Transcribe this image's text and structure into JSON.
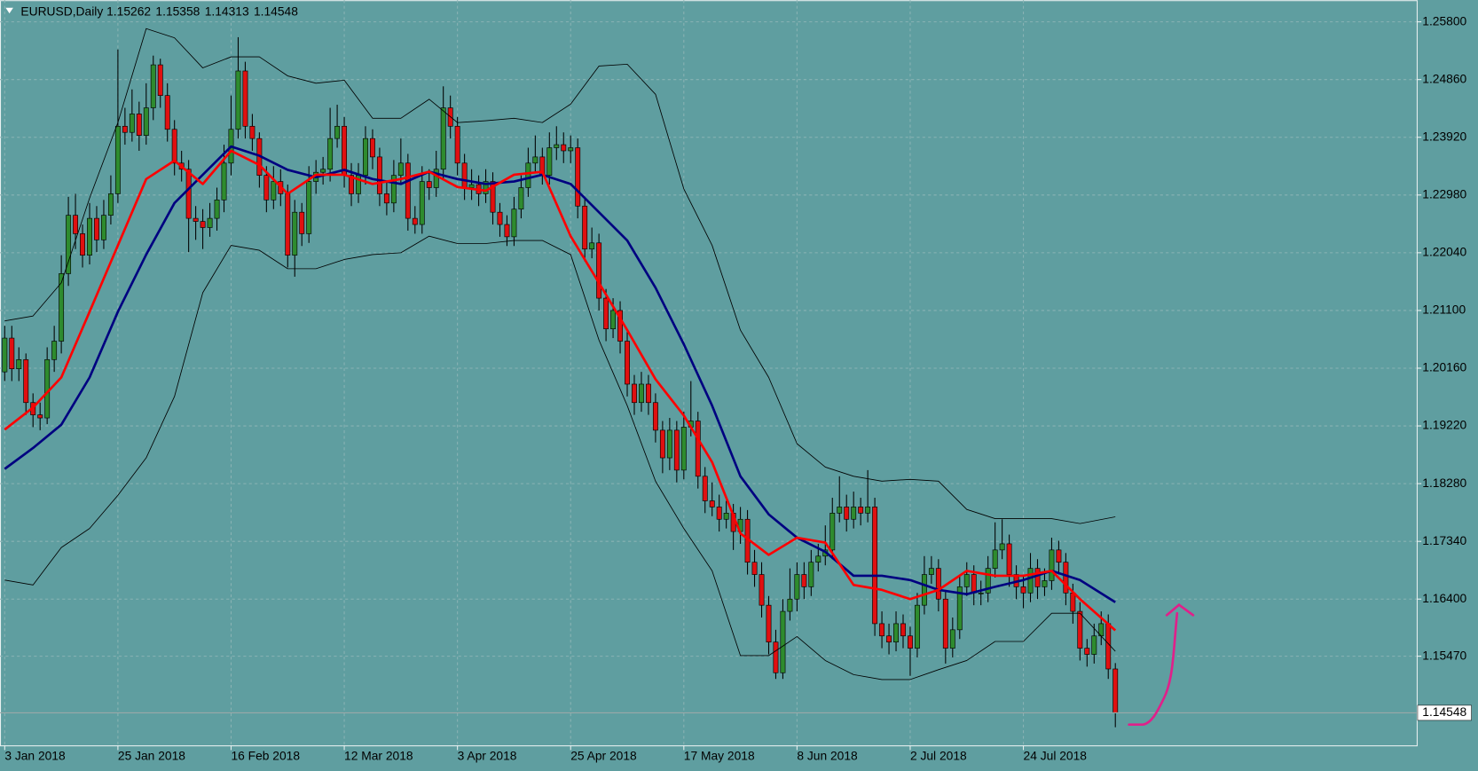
{
  "chart_data": {
    "type": "candlestick",
    "title": "EURUSD,Daily",
    "up_color": "#2e8b2e",
    "down_color": "#e01010",
    "background": "#5f9ea0",
    "grid": true,
    "xlim": [
      -0.667,
      199.6
    ],
    "ylim": [
      1.14018,
      1.26153
    ],
    "xticks": [
      {
        "value": 0,
        "label": "3 Jan 2018"
      },
      {
        "value": 16,
        "label": "25 Jan 2018"
      },
      {
        "value": 32,
        "label": "16 Feb 2018"
      },
      {
        "value": 48,
        "label": "12 Mar 2018"
      },
      {
        "value": 64,
        "label": "3 Apr 2018"
      },
      {
        "value": 80,
        "label": "25 Apr 2018"
      },
      {
        "value": 96,
        "label": "17 May 2018"
      },
      {
        "value": 112,
        "label": "8 Jun 2018"
      },
      {
        "value": 128,
        "label": "2 Jul 2018"
      },
      {
        "value": 144,
        "label": "24 Jul 2018"
      }
    ],
    "yticks": [
      {
        "value": 1.258,
        "label": "1.25800"
      },
      {
        "value": 1.2486,
        "label": "1.24860"
      },
      {
        "value": 1.2392,
        "label": "1.23920"
      },
      {
        "value": 1.2298,
        "label": "1.22980"
      },
      {
        "value": 1.2204,
        "label": "1.22040"
      },
      {
        "value": 1.211,
        "label": "1.21100"
      },
      {
        "value": 1.2016,
        "label": "1.20160"
      },
      {
        "value": 1.1922,
        "label": "1.19220"
      },
      {
        "value": 1.1828,
        "label": "1.18280"
      },
      {
        "value": 1.1734,
        "label": "1.17340"
      },
      {
        "value": 1.164,
        "label": "1.16400"
      },
      {
        "value": 1.1547,
        "label": "1.15470"
      }
    ],
    "candles": [
      [
        1.201,
        1.2085,
        1.1995,
        1.2065
      ],
      [
        1.2065,
        1.2085,
        1.1995,
        1.2015
      ],
      [
        1.2015,
        1.205,
        1.1995,
        1.203
      ],
      [
        1.203,
        1.204,
        1.194,
        1.196
      ],
      [
        1.196,
        1.1975,
        1.192,
        1.194
      ],
      [
        1.194,
        1.196,
        1.1915,
        1.1935
      ],
      [
        1.1935,
        1.205,
        1.1925,
        1.203
      ],
      [
        1.203,
        1.2085,
        1.201,
        1.206
      ],
      [
        1.206,
        1.22,
        1.204,
        1.217
      ],
      [
        1.217,
        1.2295,
        1.215,
        1.2265
      ],
      [
        1.2265,
        1.23,
        1.221,
        1.2235
      ],
      [
        1.2235,
        1.225,
        1.218,
        1.22
      ],
      [
        1.22,
        1.2285,
        1.2185,
        1.226
      ],
      [
        1.226,
        1.228,
        1.2205,
        1.2225
      ],
      [
        1.2225,
        1.229,
        1.221,
        1.2265
      ],
      [
        1.2265,
        1.233,
        1.225,
        1.23
      ],
      [
        1.23,
        1.2535,
        1.2285,
        1.241
      ],
      [
        1.241,
        1.244,
        1.238,
        1.24
      ],
      [
        1.24,
        1.247,
        1.2385,
        1.243
      ],
      [
        1.243,
        1.245,
        1.237,
        1.2395
      ],
      [
        1.2395,
        1.248,
        1.238,
        1.244
      ],
      [
        1.244,
        1.2525,
        1.242,
        1.251
      ],
      [
        1.251,
        1.252,
        1.244,
        1.246
      ],
      [
        1.246,
        1.248,
        1.2385,
        1.2405
      ],
      [
        1.2405,
        1.242,
        1.233,
        1.235
      ],
      [
        1.235,
        1.237,
        1.232,
        1.234
      ],
      [
        1.234,
        1.2355,
        1.2205,
        1.226
      ],
      [
        1.226,
        1.228,
        1.2225,
        1.2255
      ],
      [
        1.2255,
        1.2275,
        1.221,
        1.2245
      ],
      [
        1.2245,
        1.2285,
        1.223,
        1.226
      ],
      [
        1.226,
        1.231,
        1.224,
        1.229
      ],
      [
        1.229,
        1.238,
        1.227,
        1.235
      ],
      [
        1.235,
        1.246,
        1.233,
        1.2405
      ],
      [
        1.2405,
        1.2555,
        1.239,
        1.25
      ],
      [
        1.25,
        1.2515,
        1.239,
        1.241
      ],
      [
        1.241,
        1.243,
        1.237,
        1.239
      ],
      [
        1.239,
        1.24,
        1.231,
        1.233
      ],
      [
        1.233,
        1.2345,
        1.227,
        1.229
      ],
      [
        1.229,
        1.2345,
        1.2275,
        1.232
      ],
      [
        1.232,
        1.234,
        1.228,
        1.23
      ],
      [
        1.23,
        1.2315,
        1.218,
        1.22
      ],
      [
        1.22,
        1.229,
        1.2165,
        1.227
      ],
      [
        1.227,
        1.2285,
        1.2215,
        1.2235
      ],
      [
        1.2235,
        1.2345,
        1.222,
        1.232
      ],
      [
        1.232,
        1.2355,
        1.23,
        1.2335
      ],
      [
        1.2335,
        1.236,
        1.2315,
        1.234
      ],
      [
        1.234,
        1.244,
        1.232,
        1.239
      ],
      [
        1.239,
        1.2445,
        1.2375,
        1.241
      ],
      [
        1.241,
        1.2425,
        1.231,
        1.233
      ],
      [
        1.233,
        1.235,
        1.228,
        1.23
      ],
      [
        1.23,
        1.235,
        1.2285,
        1.233
      ],
      [
        1.233,
        1.241,
        1.2315,
        1.239
      ],
      [
        1.239,
        1.2405,
        1.234,
        1.236
      ],
      [
        1.236,
        1.2375,
        1.228,
        1.23
      ],
      [
        1.23,
        1.232,
        1.2265,
        1.2285
      ],
      [
        1.2285,
        1.2355,
        1.227,
        1.233
      ],
      [
        1.233,
        1.239,
        1.2315,
        1.235
      ],
      [
        1.235,
        1.2365,
        1.224,
        1.226
      ],
      [
        1.226,
        1.228,
        1.2235,
        1.225
      ],
      [
        1.225,
        1.2345,
        1.2235,
        1.232
      ],
      [
        1.232,
        1.234,
        1.229,
        1.231
      ],
      [
        1.231,
        1.237,
        1.2295,
        1.234
      ],
      [
        1.234,
        1.2475,
        1.2325,
        1.244
      ],
      [
        1.244,
        1.246,
        1.239,
        1.241
      ],
      [
        1.241,
        1.2425,
        1.233,
        1.235
      ],
      [
        1.235,
        1.2365,
        1.229,
        1.231
      ],
      [
        1.231,
        1.234,
        1.229,
        1.2315
      ],
      [
        1.2315,
        1.233,
        1.228,
        1.23
      ],
      [
        1.23,
        1.234,
        1.2285,
        1.232
      ],
      [
        1.232,
        1.2335,
        1.225,
        1.227
      ],
      [
        1.227,
        1.2285,
        1.223,
        1.225
      ],
      [
        1.225,
        1.2265,
        1.2215,
        1.223
      ],
      [
        1.223,
        1.2295,
        1.2215,
        1.2275
      ],
      [
        1.2275,
        1.233,
        1.226,
        1.231
      ],
      [
        1.231,
        1.2375,
        1.2295,
        1.235
      ],
      [
        1.235,
        1.2395,
        1.2335,
        1.236
      ],
      [
        1.236,
        1.2375,
        1.2315,
        1.233
      ],
      [
        1.233,
        1.24,
        1.2315,
        1.2375
      ],
      [
        1.2375,
        1.241,
        1.2355,
        1.238
      ],
      [
        1.238,
        1.24,
        1.235,
        1.237
      ],
      [
        1.237,
        1.2395,
        1.235,
        1.2375
      ],
      [
        1.2375,
        1.239,
        1.226,
        1.228
      ],
      [
        1.228,
        1.2295,
        1.219,
        1.221
      ],
      [
        1.221,
        1.2245,
        1.2195,
        1.222
      ],
      [
        1.222,
        1.2235,
        1.211,
        1.213
      ],
      [
        1.213,
        1.2145,
        1.206,
        1.208
      ],
      [
        1.208,
        1.213,
        1.2065,
        1.211
      ],
      [
        1.211,
        1.2125,
        1.204,
        1.206
      ],
      [
        1.206,
        1.2075,
        1.197,
        1.199
      ],
      [
        1.199,
        1.2005,
        1.194,
        1.196
      ],
      [
        1.196,
        1.201,
        1.1945,
        1.199
      ],
      [
        1.199,
        1.2005,
        1.194,
        1.196
      ],
      [
        1.196,
        1.1975,
        1.1895,
        1.1915
      ],
      [
        1.1915,
        1.193,
        1.1845,
        1.187
      ],
      [
        1.187,
        1.1935,
        1.185,
        1.1915
      ],
      [
        1.1915,
        1.193,
        1.183,
        1.185
      ],
      [
        1.185,
        1.1945,
        1.1835,
        1.192
      ],
      [
        1.192,
        1.1995,
        1.1905,
        1.193
      ],
      [
        1.193,
        1.1945,
        1.182,
        1.184
      ],
      [
        1.184,
        1.1855,
        1.178,
        1.18
      ],
      [
        1.18,
        1.183,
        1.1775,
        1.179
      ],
      [
        1.179,
        1.181,
        1.175,
        1.177
      ],
      [
        1.177,
        1.18,
        1.1755,
        1.178
      ],
      [
        1.178,
        1.1795,
        1.172,
        1.175
      ],
      [
        1.175,
        1.179,
        1.173,
        1.177
      ],
      [
        1.177,
        1.1785,
        1.168,
        1.17
      ],
      [
        1.17,
        1.172,
        1.166,
        1.168
      ],
      [
        1.168,
        1.17,
        1.161,
        1.163
      ],
      [
        1.163,
        1.1645,
        1.155,
        1.157
      ],
      [
        1.157,
        1.159,
        1.151,
        1.152
      ],
      [
        1.152,
        1.164,
        1.151,
        1.162
      ],
      [
        1.162,
        1.169,
        1.1605,
        1.164
      ],
      [
        1.164,
        1.17,
        1.162,
        1.168
      ],
      [
        1.168,
        1.17,
        1.164,
        1.166
      ],
      [
        1.166,
        1.172,
        1.1645,
        1.17
      ],
      [
        1.17,
        1.173,
        1.1685,
        1.171
      ],
      [
        1.171,
        1.176,
        1.1695,
        1.172
      ],
      [
        1.172,
        1.1805,
        1.1705,
        1.178
      ],
      [
        1.178,
        1.184,
        1.1765,
        1.179
      ],
      [
        1.179,
        1.181,
        1.175,
        1.177
      ],
      [
        1.177,
        1.1815,
        1.1755,
        1.179
      ],
      [
        1.179,
        1.1805,
        1.176,
        1.178
      ],
      [
        1.178,
        1.185,
        1.1765,
        1.179
      ],
      [
        1.179,
        1.1805,
        1.158,
        1.16
      ],
      [
        1.16,
        1.162,
        1.156,
        1.158
      ],
      [
        1.158,
        1.16,
        1.155,
        1.157
      ],
      [
        1.157,
        1.162,
        1.1555,
        1.16
      ],
      [
        1.16,
        1.1615,
        1.156,
        1.158
      ],
      [
        1.158,
        1.1595,
        1.1515,
        1.156
      ],
      [
        1.156,
        1.165,
        1.1545,
        1.163
      ],
      [
        1.163,
        1.171,
        1.1615,
        1.168
      ],
      [
        1.168,
        1.171,
        1.1665,
        1.169
      ],
      [
        1.169,
        1.1705,
        1.162,
        1.164
      ],
      [
        1.164,
        1.1655,
        1.1535,
        1.156
      ],
      [
        1.156,
        1.161,
        1.1545,
        1.159
      ],
      [
        1.159,
        1.168,
        1.1575,
        1.166
      ],
      [
        1.166,
        1.17,
        1.1645,
        1.168
      ],
      [
        1.168,
        1.1695,
        1.163,
        1.165
      ],
      [
        1.165,
        1.167,
        1.163,
        1.165
      ],
      [
        1.165,
        1.171,
        1.1635,
        1.169
      ],
      [
        1.169,
        1.1765,
        1.1675,
        1.172
      ],
      [
        1.172,
        1.177,
        1.1705,
        1.173
      ],
      [
        1.173,
        1.1745,
        1.166,
        1.168
      ],
      [
        1.168,
        1.1695,
        1.164,
        1.166
      ],
      [
        1.166,
        1.168,
        1.1625,
        1.165
      ],
      [
        1.165,
        1.1715,
        1.1635,
        1.169
      ],
      [
        1.169,
        1.1705,
        1.164,
        1.166
      ],
      [
        1.166,
        1.169,
        1.1645,
        1.167
      ],
      [
        1.167,
        1.174,
        1.1655,
        1.172
      ],
      [
        1.172,
        1.1735,
        1.168,
        1.17
      ],
      [
        1.17,
        1.1715,
        1.163,
        1.165
      ],
      [
        1.165,
        1.1665,
        1.16,
        1.162
      ],
      [
        1.162,
        1.1635,
        1.154,
        1.156
      ],
      [
        1.156,
        1.1575,
        1.153,
        1.155
      ],
      [
        1.155,
        1.16,
        1.1535,
        1.158
      ],
      [
        1.158,
        1.162,
        1.1565,
        1.16
      ],
      [
        1.16,
        1.1615,
        1.151,
        1.15262
      ],
      [
        1.15262,
        1.15358,
        1.14313,
        1.14548
      ]
    ],
    "lines": [
      {
        "color": "#000000",
        "width": 0.8,
        "x": [
          0,
          4,
          8,
          12,
          16,
          20,
          24,
          28,
          32,
          36,
          40,
          44,
          48,
          52,
          56,
          60,
          64,
          68,
          72,
          76,
          80,
          84,
          88,
          92,
          96,
          100,
          104,
          108,
          112,
          116,
          120,
          124,
          128,
          132,
          136,
          140,
          144,
          148,
          152,
          157
        ],
        "values": [
          1.2093,
          1.2101,
          1.2155,
          1.2293,
          1.2416,
          1.2569,
          1.2554,
          1.2505,
          1.2523,
          1.2523,
          1.2492,
          1.248,
          1.2485,
          1.2423,
          1.2423,
          1.2454,
          1.2416,
          1.2419,
          1.2423,
          1.2416,
          1.2446,
          1.2508,
          1.2511,
          1.2462,
          1.2308,
          1.2216,
          1.2078,
          1.2001,
          1.1893,
          1.1855,
          1.184,
          1.1832,
          1.1835,
          1.1832,
          1.1786,
          1.1771,
          1.1771,
          1.1771,
          1.1763,
          1.1774
        ]
      },
      {
        "color": "#000000",
        "width": 0.8,
        "x": [
          0,
          4,
          8,
          12,
          16,
          20,
          24,
          28,
          32,
          36,
          40,
          44,
          48,
          52,
          56,
          60,
          64,
          68,
          72,
          76,
          80,
          84,
          88,
          92,
          96,
          100,
          104,
          108,
          112,
          116,
          120,
          124,
          128,
          132,
          136,
          140,
          144,
          148,
          152,
          157
        ],
        "values": [
          1.1671,
          1.1663,
          1.1724,
          1.1755,
          1.1809,
          1.187,
          1.197,
          1.2139,
          1.2216,
          1.2208,
          1.2178,
          1.2178,
          1.2193,
          1.2201,
          1.2204,
          1.2231,
          1.2219,
          1.2219,
          1.2224,
          1.2224,
          1.2201,
          1.2062,
          1.1955,
          1.1832,
          1.1755,
          1.1686,
          1.1548,
          1.1548,
          1.1579,
          1.154,
          1.1517,
          1.1509,
          1.1509,
          1.1525,
          1.154,
          1.1571,
          1.1571,
          1.1617,
          1.1617,
          1.1555
        ]
      },
      {
        "color": "#000080",
        "width": 2.5,
        "x": [
          0,
          4,
          8,
          12,
          16,
          20,
          24,
          28,
          32,
          36,
          40,
          44,
          48,
          52,
          56,
          60,
          64,
          68,
          72,
          76,
          80,
          84,
          88,
          92,
          96,
          100,
          104,
          108,
          112,
          116,
          120,
          124,
          128,
          132,
          136,
          140,
          144,
          148,
          152,
          157
        ],
        "values": [
          1.1852,
          1.1886,
          1.1924,
          1.2001,
          1.2108,
          1.2201,
          1.2285,
          1.2331,
          1.2377,
          1.2362,
          1.2339,
          1.2327,
          1.2339,
          1.2324,
          1.2316,
          1.2336,
          1.2324,
          1.2316,
          1.232,
          1.2331,
          1.2316,
          1.227,
          1.2224,
          1.2147,
          1.2055,
          1.1955,
          1.184,
          1.1778,
          1.174,
          1.1717,
          1.1678,
          1.1678,
          1.1671,
          1.1655,
          1.1648,
          1.166,
          1.1671,
          1.1686,
          1.1671,
          1.1635
        ]
      },
      {
        "color": "#ff0000",
        "width": 2.5,
        "x": [
          0,
          4,
          8,
          12,
          16,
          20,
          24,
          28,
          32,
          36,
          40,
          44,
          48,
          52,
          56,
          60,
          64,
          68,
          72,
          76,
          80,
          84,
          88,
          92,
          96,
          100,
          104,
          108,
          112,
          116,
          120,
          124,
          128,
          132,
          136,
          140,
          144,
          148,
          152,
          157
        ],
        "values": [
          1.1916,
          1.1952,
          1.2001,
          1.2108,
          1.2216,
          1.2324,
          1.2354,
          1.2316,
          1.237,
          1.2347,
          1.23,
          1.2331,
          1.2331,
          1.2316,
          1.2324,
          1.2336,
          1.2311,
          1.2305,
          1.2331,
          1.2336,
          1.2231,
          1.2155,
          1.2078,
          1.1998,
          1.1939,
          1.1863,
          1.1747,
          1.1712,
          1.174,
          1.1732,
          1.1663,
          1.1655,
          1.164,
          1.1655,
          1.1686,
          1.1678,
          1.1678,
          1.1686,
          1.164,
          1.1589
        ]
      }
    ]
  }
}
